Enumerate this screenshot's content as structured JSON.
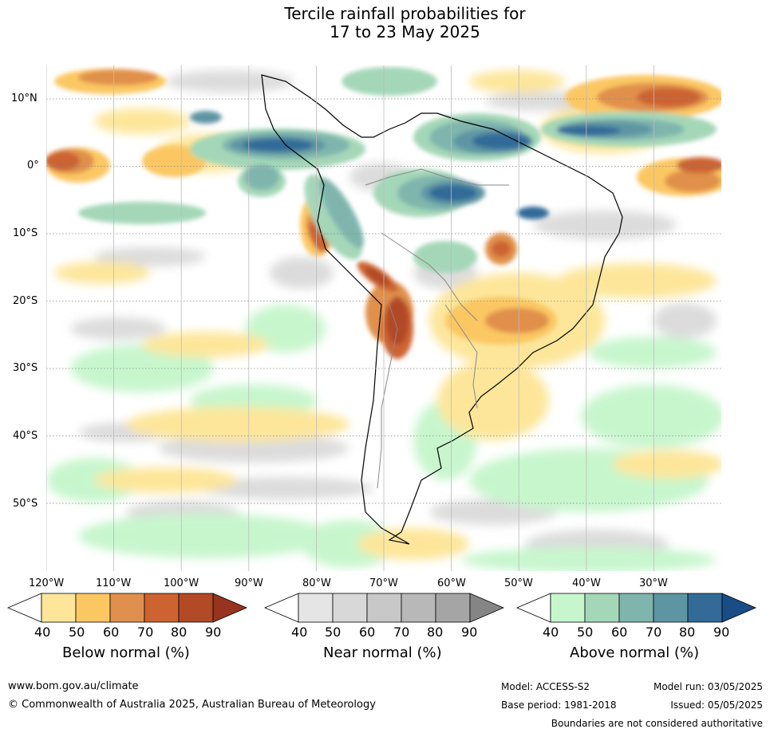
{
  "title_line1": "Tercile rainfall probabilities for",
  "title_line2": "17 to 23 May 2025",
  "lat_labels": [
    "10°N",
    "0°",
    "10°S",
    "20°S",
    "30°S",
    "40°S",
    "50°S"
  ],
  "lon_labels": [
    "120°W",
    "110°W",
    "100°W",
    "90°W",
    "80°W",
    "70°W",
    "60°W",
    "50°W",
    "40°W",
    "30°W"
  ],
  "colorbars": [
    {
      "name": "below",
      "title": "Below normal (%)",
      "ticks": [
        "40",
        "50",
        "60",
        "70",
        "80",
        "90"
      ],
      "colors": [
        "#fde69a",
        "#fbc763",
        "#e0904c",
        "#cc6330",
        "#b24a26",
        "#97341f"
      ]
    },
    {
      "name": "near",
      "title": "Near normal (%)",
      "ticks": [
        "40",
        "50",
        "60",
        "70",
        "80",
        "90"
      ],
      "colors": [
        "#e5e5e5",
        "#d8d8d8",
        "#c8c8c8",
        "#b8b8b8",
        "#a5a5a5",
        "#858585"
      ]
    },
    {
      "name": "above",
      "title": "Above normal (%)",
      "ticks": [
        "40",
        "50",
        "60",
        "70",
        "80",
        "90"
      ],
      "colors": [
        "#c7f6cd",
        "#a4d7b8",
        "#7fb5ad",
        "#5e95a3",
        "#336a98",
        "#1a4d85"
      ]
    }
  ],
  "footer": {
    "website": "www.bom.gov.au/climate",
    "copyright": "© Commonwealth of Australia 2025, Australian Bureau of Meteorology",
    "model": "Model: ACCESS-S2",
    "base_period": "Base period: 1981-2018",
    "model_run": "Model run: 03/05/2025",
    "issued": "Issued: 05/05/2025",
    "disclaimer": "Boundaries are not considered authoritative"
  }
}
